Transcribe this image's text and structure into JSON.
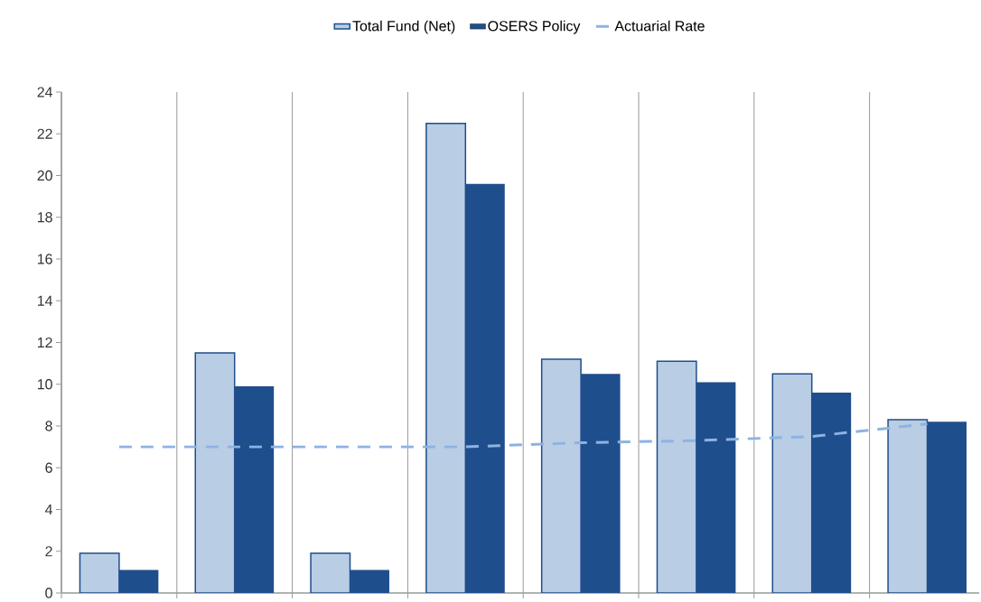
{
  "chart_data": {
    "type": "bar",
    "categories": [
      null,
      null,
      null,
      null,
      null,
      null,
      null,
      null
    ],
    "series": [
      {
        "name": "Total Fund (Net)",
        "color": "#b9cde5",
        "values": [
          1.9,
          11.5,
          1.9,
          22.5,
          11.2,
          11.1,
          10.5,
          8.3
        ]
      },
      {
        "name": "OSERS Policy",
        "color": "#1f4e8c",
        "values": [
          1.1,
          9.9,
          1.1,
          19.6,
          10.5,
          10.1,
          9.6,
          8.2
        ]
      },
      {
        "name": "Actuarial Rate",
        "type": "line",
        "line_style": "dashed",
        "color": "#8db3e2",
        "values": [
          7.0,
          7.0,
          7.0,
          7.0,
          7.2,
          7.3,
          7.5,
          8.1
        ]
      }
    ],
    "ylim": [
      0,
      24
    ],
    "yticks": [
      0,
      2,
      4,
      6,
      8,
      10,
      12,
      14,
      16,
      18,
      20,
      22,
      24
    ],
    "grid": "x",
    "legend": "top",
    "tick_labels": "y"
  }
}
